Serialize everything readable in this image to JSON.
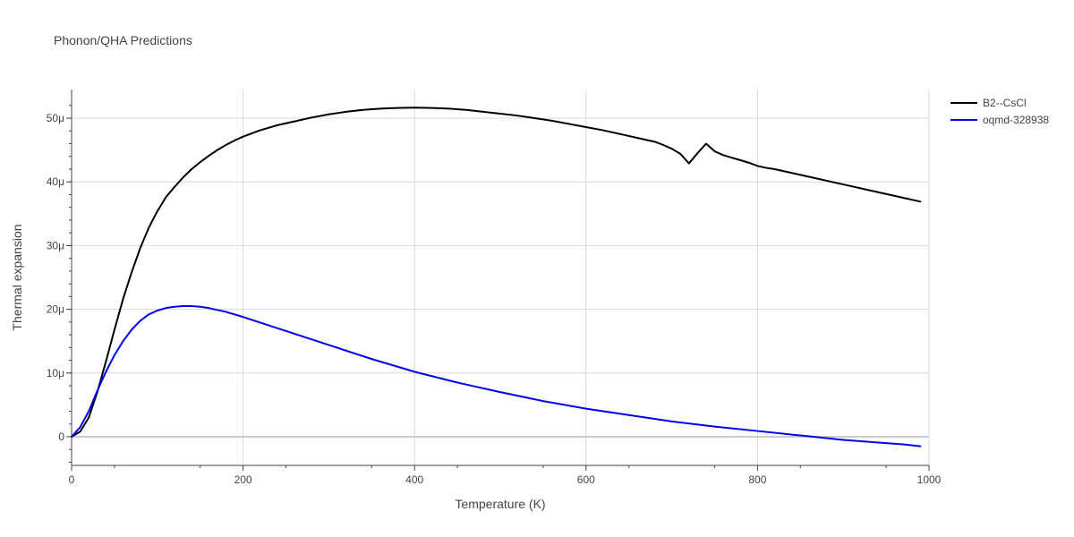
{
  "chart_data": {
    "type": "line",
    "title": "Phonon/QHA Predictions",
    "xlabel": "Temperature (K)",
    "ylabel": "Thermal expansion",
    "xlim": [
      0,
      1000
    ],
    "ylim": [
      -4.5e-06,
      5.45e-05
    ],
    "x_ticks": [
      0,
      200,
      400,
      600,
      800,
      1000
    ],
    "x_tick_labels": [
      "0",
      "200",
      "400",
      "600",
      "800",
      "1000"
    ],
    "y_ticks": [
      0,
      1e-05,
      2e-05,
      3e-05,
      4e-05,
      5e-05
    ],
    "y_tick_labels": [
      "0",
      "10μ",
      "20μ",
      "30μ",
      "40μ",
      "50μ"
    ],
    "grid": true,
    "legend_position": "top-right",
    "series": [
      {
        "name": "B2--CsCl",
        "color": "#000000",
        "x": [
          0,
          10,
          20,
          30,
          40,
          50,
          60,
          70,
          80,
          90,
          100,
          110,
          120,
          130,
          140,
          150,
          160,
          170,
          180,
          190,
          200,
          210,
          220,
          240,
          260,
          280,
          300,
          320,
          340,
          360,
          380,
          400,
          420,
          440,
          460,
          480,
          500,
          520,
          540,
          560,
          580,
          600,
          620,
          640,
          660,
          680,
          690,
          700,
          710,
          720,
          730,
          740,
          750,
          760,
          770,
          780,
          790,
          800,
          810,
          820,
          830,
          850,
          900,
          950,
          990
        ],
        "y": [
          0,
          8e-07,
          3e-06,
          7e-06,
          1.18e-05,
          1.68e-05,
          2.16e-05,
          2.58e-05,
          2.96e-05,
          3.28e-05,
          3.54e-05,
          3.76e-05,
          3.92e-05,
          4.07e-05,
          4.2e-05,
          4.31e-05,
          4.41e-05,
          4.5e-05,
          4.58e-05,
          4.65e-05,
          4.71e-05,
          4.76e-05,
          4.81e-05,
          4.89e-05,
          4.95e-05,
          5.01e-05,
          5.06e-05,
          5.1e-05,
          5.13e-05,
          5.15e-05,
          5.16e-05,
          5.165e-05,
          5.16e-05,
          5.15e-05,
          5.13e-05,
          5.1e-05,
          5.07e-05,
          5.04e-05,
          5e-05,
          4.96e-05,
          4.91e-05,
          4.86e-05,
          4.81e-05,
          4.75e-05,
          4.69e-05,
          4.63e-05,
          4.58e-05,
          4.52e-05,
          4.44e-05,
          4.29e-05,
          4.45e-05,
          4.6e-05,
          4.48e-05,
          4.42e-05,
          4.38e-05,
          4.34e-05,
          4.3e-05,
          4.25e-05,
          4.22e-05,
          4.2e-05,
          4.17e-05,
          4.11e-05,
          3.96e-05,
          3.81e-05,
          3.69e-05
        ]
      },
      {
        "name": "oqmd-328938",
        "color": "#0000ee",
        "x": [
          0,
          10,
          20,
          30,
          40,
          50,
          60,
          70,
          80,
          90,
          100,
          110,
          120,
          130,
          140,
          150,
          160,
          180,
          200,
          250,
          300,
          350,
          400,
          450,
          500,
          550,
          600,
          650,
          700,
          750,
          800,
          850,
          900,
          950,
          970,
          990
        ],
        "y": [
          0,
          1.5e-06,
          4e-06,
          7.2e-06,
          1.02e-05,
          1.28e-05,
          1.5e-05,
          1.68e-05,
          1.82e-05,
          1.92e-05,
          1.98e-05,
          2.02e-05,
          2.04e-05,
          2.05e-05,
          2.05e-05,
          2.04e-05,
          2.02e-05,
          1.96e-05,
          1.88e-05,
          1.66e-05,
          1.44e-05,
          1.22e-05,
          1.02e-05,
          8.5e-06,
          7e-06,
          5.6e-06,
          4.4e-06,
          3.4e-06,
          2.4e-06,
          1.6e-06,
          9e-07,
          2e-07,
          -5e-07,
          -1e-06,
          -1.2e-06,
          -1.5e-06
        ]
      }
    ]
  }
}
